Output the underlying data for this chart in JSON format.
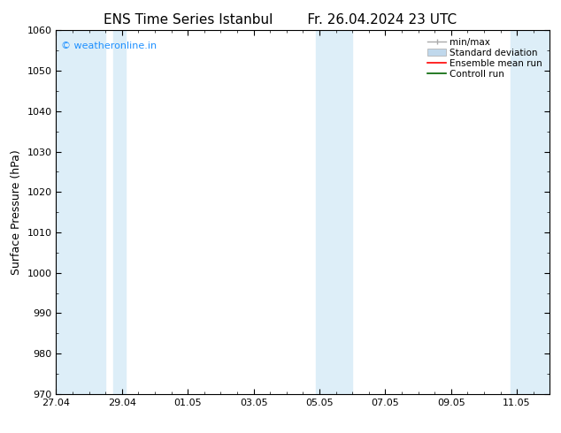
{
  "title_left": "ENS Time Series Istanbul",
  "title_right": "Fr. 26.04.2024 23 UTC",
  "ylabel": "Surface Pressure (hPa)",
  "ylim": [
    970,
    1060
  ],
  "yticks": [
    970,
    980,
    990,
    1000,
    1010,
    1020,
    1030,
    1040,
    1050,
    1060
  ],
  "xtick_labels": [
    "27.04",
    "29.04",
    "01.05",
    "03.05",
    "05.05",
    "07.05",
    "09.05",
    "11.05"
  ],
  "xtick_positions": [
    0,
    2,
    4,
    6,
    8,
    10,
    12,
    14
  ],
  "xlim": [
    0,
    15
  ],
  "shaded_bands": [
    {
      "x_start": 0.0,
      "x_end": 1.5
    },
    {
      "x_start": 1.8,
      "x_end": 2.1
    },
    {
      "x_start": 7.5,
      "x_end": 8.4
    },
    {
      "x_start": 13.5,
      "x_end": 15.0
    }
  ],
  "watermark_text": "© weatheronline.in",
  "watermark_color": "#1e90ff",
  "background_color": "#ffffff",
  "plot_bg_color": "#ffffff",
  "shade_color": "#ddeef8",
  "legend_items": [
    {
      "label": "min/max",
      "color": "#aaaaaa",
      "lw": 1.0
    },
    {
      "label": "Standard deviation",
      "color": "#c0d8ec",
      "lw": 5
    },
    {
      "label": "Ensemble mean run",
      "color": "#ff0000",
      "lw": 1.2
    },
    {
      "label": "Controll run",
      "color": "#006400",
      "lw": 1.2
    }
  ],
  "title_fontsize": 11,
  "axis_label_fontsize": 9,
  "tick_fontsize": 8,
  "legend_fontsize": 7.5,
  "watermark_fontsize": 8
}
